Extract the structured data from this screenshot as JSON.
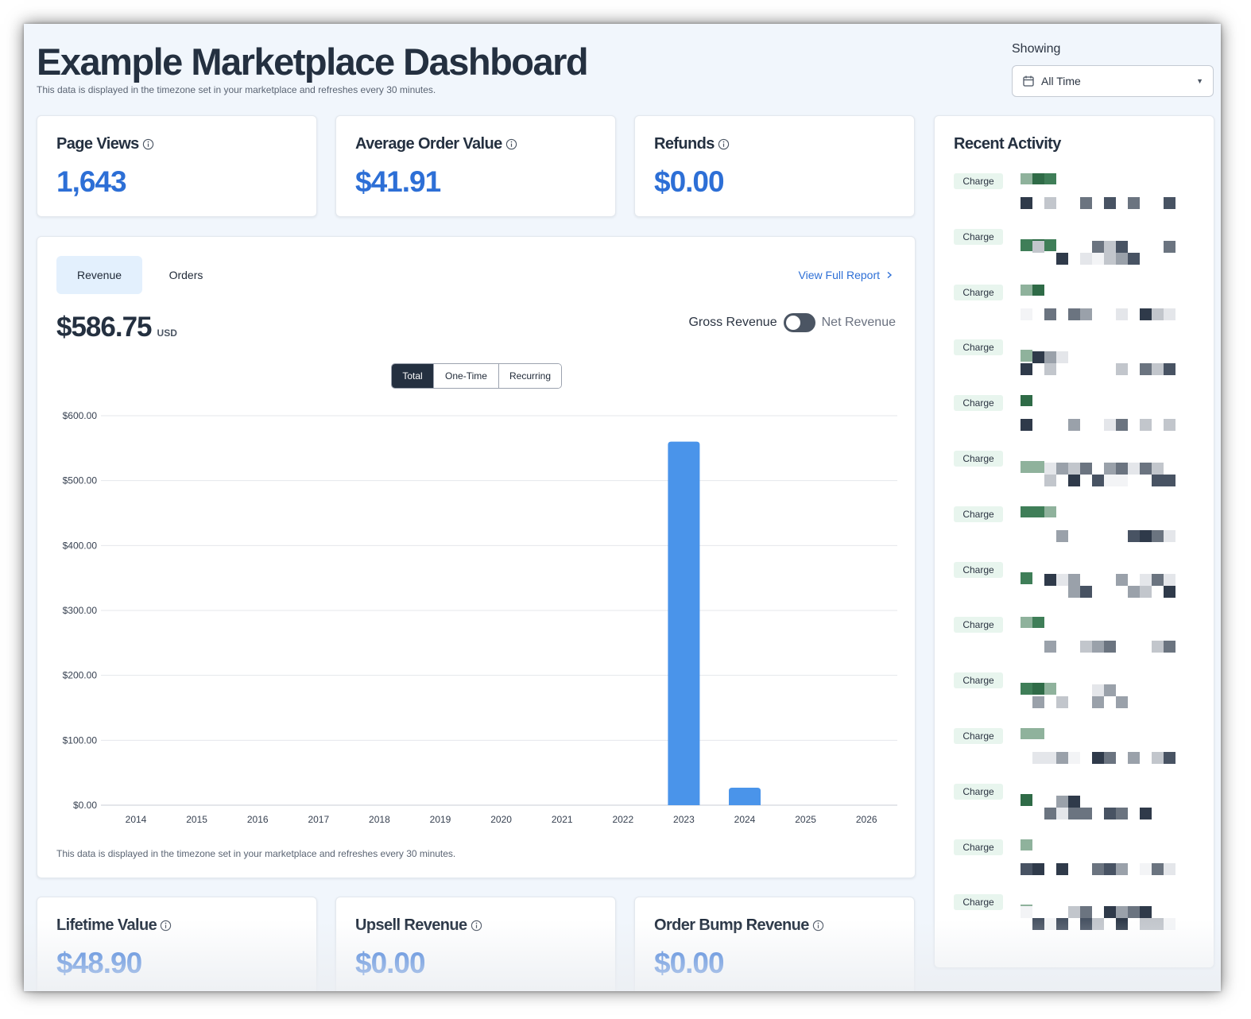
{
  "header": {
    "title": "Example Marketplace Dashboard",
    "subtitle": "This data is displayed in the timezone set in your marketplace and refreshes every 30 minutes.",
    "showing_label": "Showing",
    "range_value": "All Time"
  },
  "stats_top": [
    {
      "title": "Page Views",
      "value": "1,643"
    },
    {
      "title": "Average Order Value",
      "value": "$41.91"
    },
    {
      "title": "Refunds",
      "value": "$0.00"
    }
  ],
  "revenue_card": {
    "tabs": [
      "Revenue",
      "Orders"
    ],
    "active_tab": "Revenue",
    "report_link": "View Full Report",
    "amount": "$586.75",
    "currency": "USD",
    "toggle_left": "Gross Revenue",
    "toggle_right": "Net Revenue",
    "segments": [
      "Total",
      "One-Time",
      "Recurring"
    ],
    "active_segment": "Total",
    "note": "This data is displayed in the timezone set in your marketplace and refreshes every 30 minutes."
  },
  "chart_data": {
    "type": "bar",
    "categories": [
      "2014",
      "2015",
      "2016",
      "2017",
      "2018",
      "2019",
      "2020",
      "2021",
      "2022",
      "2023",
      "2024",
      "2025",
      "2026"
    ],
    "values": [
      0,
      0,
      0,
      0,
      0,
      0,
      0,
      0,
      0,
      560,
      27,
      0,
      0
    ],
    "title": "",
    "xlabel": "",
    "ylabel": "",
    "ylim": [
      0,
      600
    ],
    "yticks": [
      "$0.00",
      "$100.00",
      "$200.00",
      "$300.00",
      "$400.00",
      "$500.00",
      "$600.00"
    ],
    "grid": true,
    "bar_color": "#4a94ea"
  },
  "stats_bottom": [
    {
      "title": "Lifetime Value",
      "value": "$48.90"
    },
    {
      "title": "Upsell Revenue",
      "value": "$0.00"
    },
    {
      "title": "Order Bump Revenue",
      "value": "$0.00"
    }
  ],
  "recent_activity": {
    "title": "Recent Activity",
    "badge_label": "Charge",
    "count": 14
  },
  "colors": {
    "accent": "#2d6fd6",
    "bar": "#4a94ea",
    "badge_bg": "#e8f5ee",
    "dark": "#243040"
  },
  "icons": {
    "info": "info-circle-icon",
    "calendar": "calendar-icon",
    "caret": "caret-down-icon",
    "chevron": "chevron-right-icon"
  }
}
